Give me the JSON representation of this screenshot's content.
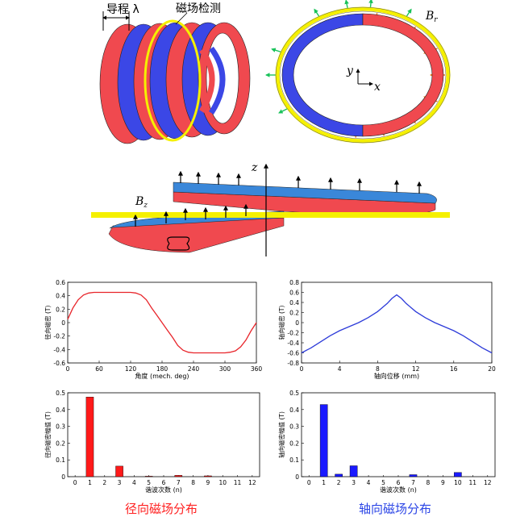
{
  "diagram": {
    "helix_labels": {
      "pitch": "导程 λ",
      "sensor": "磁场检测"
    },
    "ring_labels": {
      "br": "B",
      "br_sub": "r",
      "y": "y",
      "x": "x"
    },
    "strip_labels": {
      "bz": "B",
      "bz_sub": "z",
      "z": "z"
    },
    "colors": {
      "red": "#f0494f",
      "blue": "#3b47e6",
      "yellow": "#f5f000",
      "green": "#19c25a",
      "orange": "#f07a1a"
    }
  },
  "chart_data": [
    {
      "type": "line",
      "ylabel": "径向磁密 (T)",
      "xlabel": "角度 (mech. deg)",
      "xticks": [
        "0",
        "60",
        "120",
        "180",
        "240",
        "300",
        "360"
      ],
      "yticks": [
        "0.6",
        "0.4",
        "0.2",
        "0",
        "-0.2",
        "-0.4",
        "-0.6"
      ],
      "xlim": [
        0,
        360
      ],
      "ylim": [
        -0.6,
        0.6
      ],
      "color": "#e8242a",
      "x": [
        0,
        10,
        20,
        30,
        40,
        50,
        60,
        120,
        130,
        140,
        150,
        160,
        170,
        180,
        190,
        200,
        210,
        220,
        230,
        240,
        300,
        310,
        320,
        330,
        340,
        350,
        360
      ],
      "y": [
        0.05,
        0.22,
        0.34,
        0.41,
        0.44,
        0.45,
        0.45,
        0.45,
        0.44,
        0.41,
        0.34,
        0.22,
        0.11,
        0.0,
        -0.11,
        -0.22,
        -0.34,
        -0.41,
        -0.44,
        -0.45,
        -0.45,
        -0.44,
        -0.42,
        -0.36,
        -0.26,
        -0.12,
        0.0
      ]
    },
    {
      "type": "line",
      "ylabel": "轴向磁密 (T)",
      "xlabel": "轴向位移 (mm)",
      "xticks": [
        "0",
        "4",
        "8",
        "12",
        "16",
        "20"
      ],
      "yticks": [
        "0.8",
        "0.6",
        "0.4",
        "0.2",
        "0",
        "-0.2",
        "-0.4",
        "-0.6",
        "-0.8"
      ],
      "xlim": [
        0,
        20
      ],
      "ylim": [
        -0.8,
        0.8
      ],
      "color": "#2d3bd9",
      "x": [
        0,
        1,
        2,
        3,
        4,
        5,
        6,
        7,
        8,
        9,
        9.5,
        10,
        10.5,
        11,
        12,
        13,
        14,
        15,
        16,
        17,
        18,
        19,
        20
      ],
      "y": [
        -0.6,
        -0.5,
        -0.38,
        -0.26,
        -0.16,
        -0.08,
        0.0,
        0.1,
        0.22,
        0.38,
        0.48,
        0.55,
        0.48,
        0.38,
        0.22,
        0.1,
        0.0,
        -0.08,
        -0.16,
        -0.26,
        -0.38,
        -0.5,
        -0.6
      ]
    },
    {
      "type": "bar",
      "ylabel": "径向磁密幅值 (T)",
      "xlabel": "谐波次数 (n)",
      "categories": [
        "0",
        "1",
        "2",
        "3",
        "4",
        "5",
        "6",
        "7",
        "8",
        "9",
        "10",
        "11",
        "12"
      ],
      "yticks": [
        "0.5",
        "0.4",
        "0.3",
        "0.2",
        "0.1",
        "0"
      ],
      "ylim": [
        0,
        0.5
      ],
      "color": "#ff1a1a",
      "bars": [
        {
          "n": 1,
          "v": 0.475
        },
        {
          "n": 3,
          "v": 0.063
        },
        {
          "n": 5,
          "v": 0.003
        },
        {
          "n": 7,
          "v": 0.008
        },
        {
          "n": 9,
          "v": 0.005
        }
      ],
      "caption": "径向磁场分布"
    },
    {
      "type": "bar",
      "ylabel": "轴向磁密幅值 (T)",
      "xlabel": "谐波次数 (n)",
      "categories": [
        "0",
        "1",
        "2",
        "3",
        "4",
        "5",
        "6",
        "7",
        "8",
        "9",
        "10",
        "11",
        "12"
      ],
      "yticks": [
        "0.5",
        "0.4",
        "0.3",
        "0.2",
        "0.1",
        "0"
      ],
      "ylim": [
        0,
        0.5
      ],
      "color": "#1a1aff",
      "bars": [
        {
          "n": 1,
          "v": 0.43
        },
        {
          "n": 2,
          "v": 0.015
        },
        {
          "n": 3,
          "v": 0.065
        },
        {
          "n": 7,
          "v": 0.012
        },
        {
          "n": 10,
          "v": 0.025
        }
      ],
      "caption": "轴向磁场分布"
    }
  ]
}
